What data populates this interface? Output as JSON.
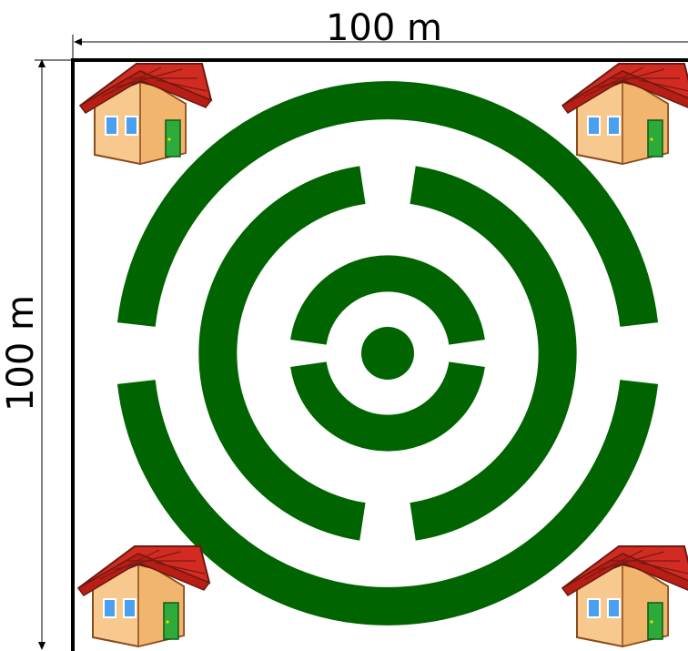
{
  "dimensions": {
    "width_label": "100 m",
    "height_label": "100 m"
  },
  "colors": {
    "maze_green": "#006400",
    "border": "#000000",
    "background": "#ffffff",
    "roof": "#cc2222",
    "wall": "#f5c590",
    "window": "#3b8de0",
    "door": "#2ea82e"
  },
  "houses": [
    {
      "name": "house-top-left",
      "icon": "house-icon"
    },
    {
      "name": "house-top-right",
      "icon": "house-icon"
    },
    {
      "name": "house-bottom-left",
      "icon": "house-icon"
    },
    {
      "name": "house-bottom-right",
      "icon": "house-icon"
    }
  ]
}
